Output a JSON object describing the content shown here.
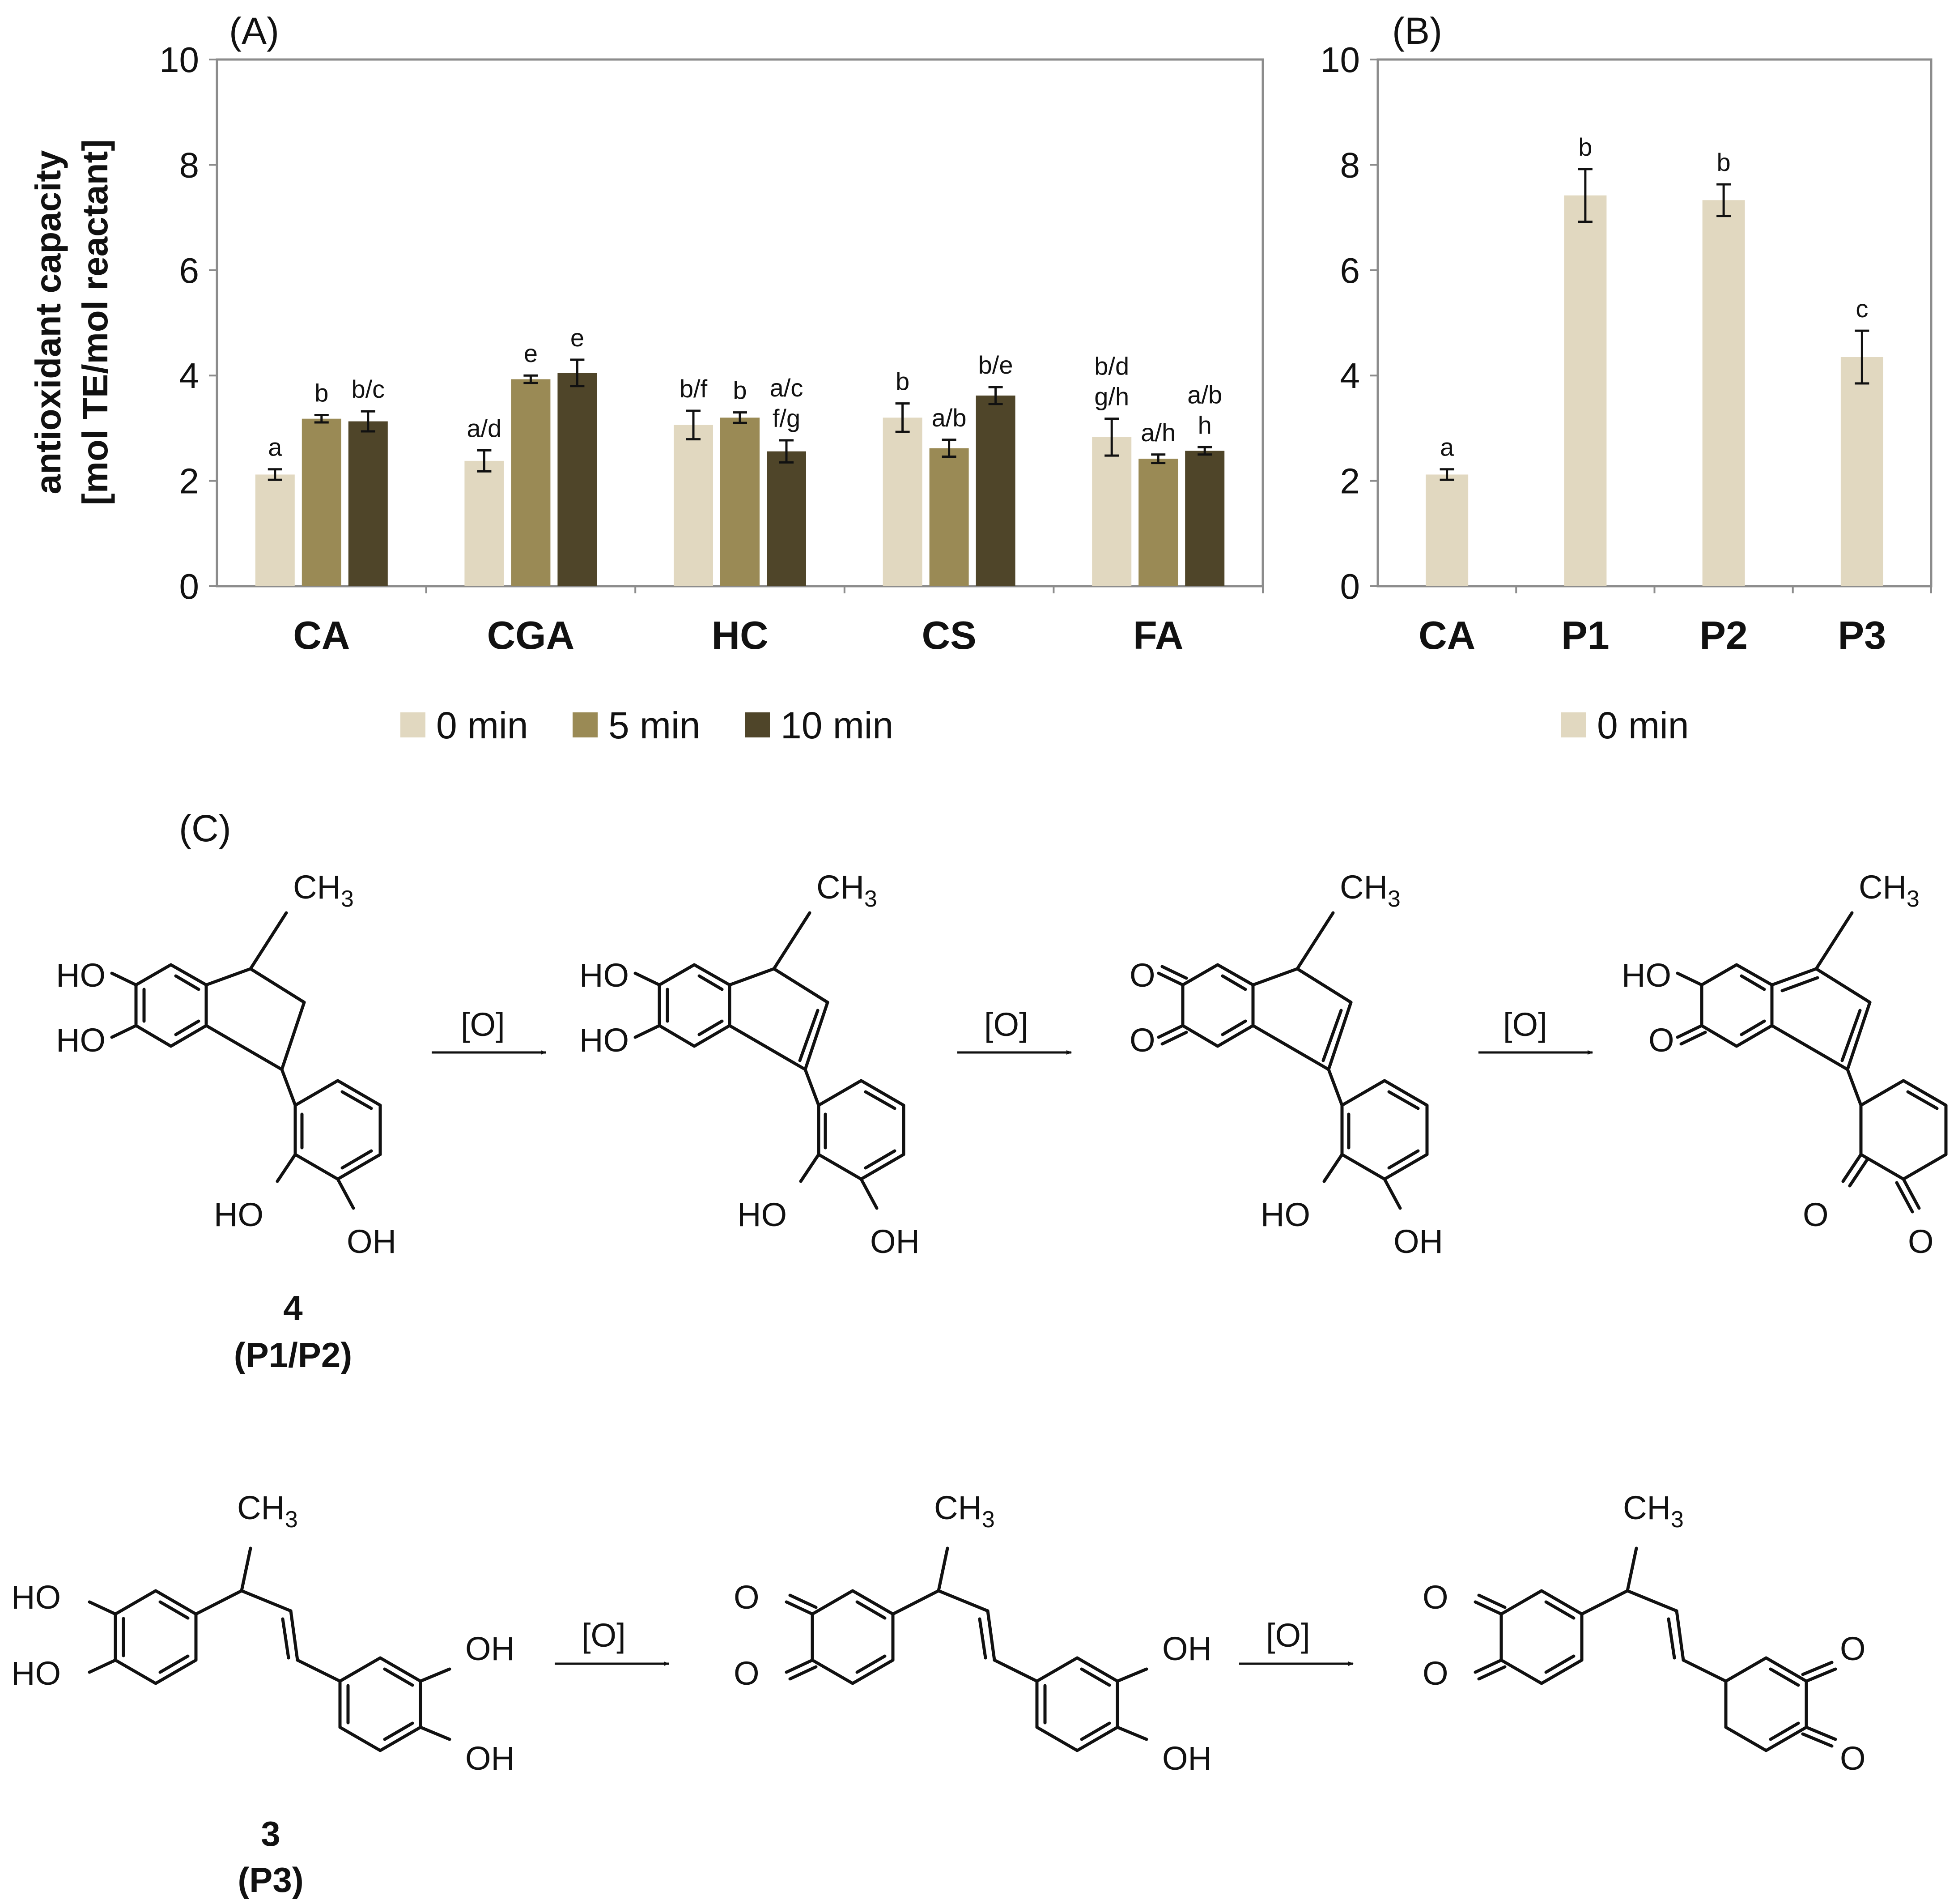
{
  "colors": {
    "min0": "#e1d8c0",
    "min5": "#9a8a55",
    "min10": "#4f4529",
    "axis": "#8c8c8c",
    "frame": "#8c8c8c"
  },
  "chart_data": [
    {
      "panel": "(A)",
      "type": "bar",
      "ylabel_line1": "antioxidant capacity",
      "ylabel_line2": "[mol TE/mol reactant]",
      "ylim": [
        0,
        10
      ],
      "yticks": [
        "0",
        "2",
        "4",
        "6",
        "8",
        "10"
      ],
      "categories": [
        "CA",
        "CGA",
        "HC",
        "CS",
        "FA"
      ],
      "series": [
        {
          "name": "0 min",
          "values": [
            2.12,
            2.38,
            3.06,
            3.2,
            2.83
          ],
          "errors": [
            0.1,
            0.2,
            0.27,
            0.27,
            0.35
          ],
          "labels": [
            [
              "a"
            ],
            [
              "a/d"
            ],
            [
              "b/f"
            ],
            [
              "b"
            ],
            [
              "b/d",
              "g/h"
            ]
          ]
        },
        {
          "name": "5 min",
          "values": [
            3.18,
            3.93,
            3.2,
            2.62,
            2.42
          ],
          "errors": [
            0.07,
            0.07,
            0.1,
            0.16,
            0.08
          ],
          "labels": [
            [
              "b"
            ],
            [
              "e"
            ],
            [
              "b"
            ],
            [
              "a/b"
            ],
            [
              "a/h"
            ]
          ]
        },
        {
          "name": "10 min",
          "values": [
            3.13,
            4.05,
            2.56,
            3.62,
            2.57
          ],
          "errors": [
            0.19,
            0.25,
            0.21,
            0.16,
            0.07
          ],
          "labels": [
            [
              "b/c"
            ],
            [
              "e"
            ],
            [
              "a/c",
              "f/g"
            ],
            [
              "b/e"
            ],
            [
              "a/b",
              "h"
            ]
          ]
        }
      ],
      "legend": [
        "0 min",
        "5 min",
        "10 min"
      ],
      "legend_position": "bottom"
    },
    {
      "panel": "(B)",
      "type": "bar",
      "ylim": [
        0,
        10
      ],
      "yticks": [
        "0",
        "2",
        "4",
        "6",
        "8",
        "10"
      ],
      "categories": [
        "CA",
        "P1",
        "P2",
        "P3"
      ],
      "series": [
        {
          "name": "0 min",
          "values": [
            2.12,
            7.42,
            7.33,
            4.35
          ],
          "errors": [
            0.1,
            0.5,
            0.3,
            0.5
          ],
          "labels": [
            [
              "a"
            ],
            [
              "b"
            ],
            [
              "b"
            ],
            [
              "c"
            ]
          ]
        }
      ],
      "legend": [
        "0 min"
      ],
      "legend_position": "bottom"
    }
  ],
  "scheme": {
    "panel": "(C)",
    "reagent": "[O]",
    "row1": {
      "compound_number": "4",
      "compound_name": "(P1/P2)"
    },
    "row2": {
      "compound_number": "3",
      "compound_name": "(P3)"
    },
    "labels": {
      "HO": "HO",
      "OH": "OH",
      "O": "O",
      "CH": "CH",
      "sub3": "3"
    }
  }
}
